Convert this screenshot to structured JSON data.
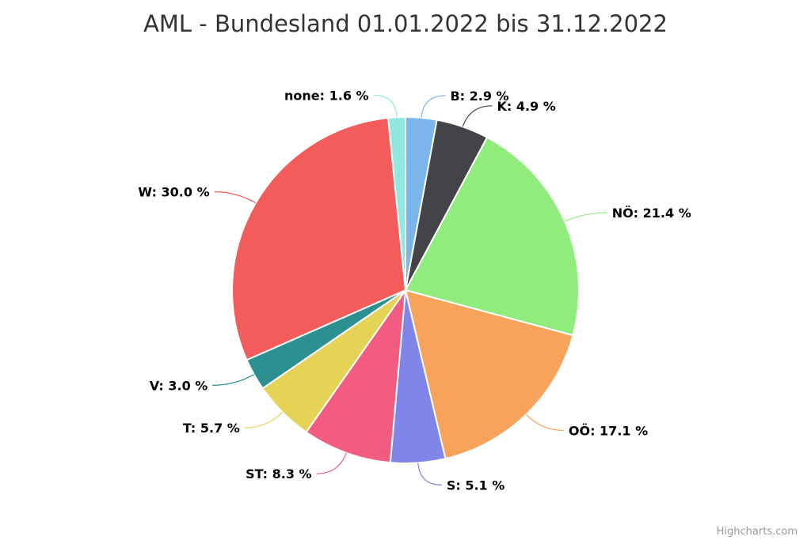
{
  "chart_data": {
    "type": "pie",
    "title": "AML - Bundesland 01.01.2022 bis 31.12.2022",
    "slices": [
      {
        "label": "B",
        "value": 2.9,
        "color": "#7cb5ec",
        "text": "B: 2.9 %"
      },
      {
        "label": "K",
        "value": 4.9,
        "color": "#434348",
        "text": "K: 4.9 %"
      },
      {
        "label": "NÖ",
        "value": 21.4,
        "color": "#90ed7d",
        "text": "NÖ: 21.4 %"
      },
      {
        "label": "OÖ",
        "value": 17.1,
        "color": "#f7a35c",
        "text": "OÖ: 17.1 %"
      },
      {
        "label": "S",
        "value": 5.1,
        "color": "#8085e9",
        "text": "S: 5.1 %"
      },
      {
        "label": "ST",
        "value": 8.3,
        "color": "#f15c80",
        "text": "ST: 8.3 %"
      },
      {
        "label": "T",
        "value": 5.7,
        "color": "#e4d354",
        "text": "T: 5.7 %"
      },
      {
        "label": "V",
        "value": 3.0,
        "color": "#2b908f",
        "text": "V: 3.0 %"
      },
      {
        "label": "W",
        "value": 30.0,
        "color": "#f45b5b",
        "text": "W: 30.0 %"
      },
      {
        "label": "none",
        "value": 1.6,
        "color": "#91e8e1",
        "text": "none: 1.6 %"
      }
    ]
  },
  "credits": "Highcharts.com"
}
